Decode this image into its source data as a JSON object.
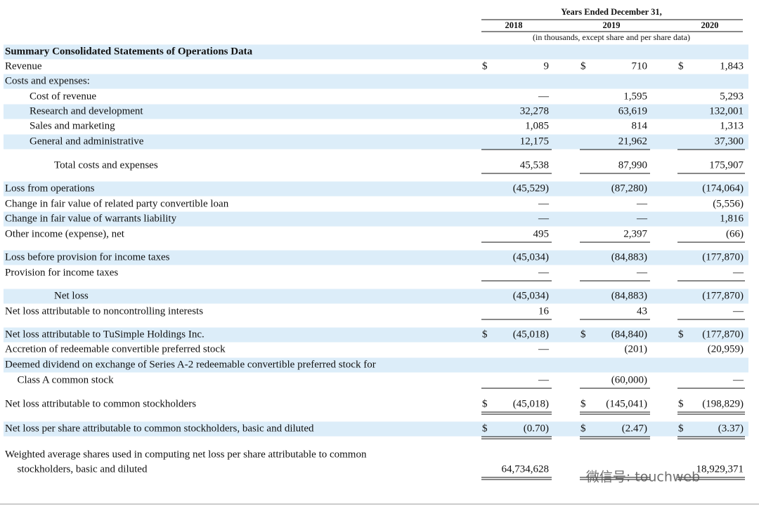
{
  "header": {
    "title": "Years Ended December 31,",
    "years": [
      "2018",
      "2019",
      "2020"
    ],
    "note": "(in thousands, except share and per share data)"
  },
  "table": {
    "rows": [
      {
        "label": "Summary Consolidated Statements of Operations Data",
        "bold": true,
        "shaded": true
      },
      {
        "label": "Revenue",
        "cells": [
          [
            "$",
            "9"
          ],
          [
            "$",
            "710"
          ],
          [
            "$",
            "1,843"
          ]
        ]
      },
      {
        "label": "Costs and expenses:",
        "shaded": true
      },
      {
        "label": "Cost of revenue",
        "indent": 1,
        "cells": [
          [
            "—"
          ],
          [
            "1,595"
          ],
          [
            "5,293"
          ]
        ]
      },
      {
        "label": "Research and development",
        "indent": 1,
        "shaded": true,
        "cells": [
          [
            "32,278"
          ],
          [
            "63,619"
          ],
          [
            "132,001"
          ]
        ]
      },
      {
        "label": "Sales and marketing",
        "indent": 1,
        "cells": [
          [
            "1,085"
          ],
          [
            "814"
          ],
          [
            "1,313"
          ]
        ]
      },
      {
        "label": "General and administrative",
        "indent": 1,
        "shaded": true,
        "rule": "single",
        "cells": [
          [
            "12,175"
          ],
          [
            "21,962"
          ],
          [
            "37,300"
          ]
        ]
      },
      {
        "label": "Total costs and expenses",
        "indent": 2,
        "rule": "single",
        "cells": [
          [
            "45,538"
          ],
          [
            "87,990"
          ],
          [
            "175,907"
          ]
        ]
      },
      {
        "label": "Loss from operations",
        "shaded": true,
        "cells": [
          [
            "(45,529)"
          ],
          [
            "(87,280)"
          ],
          [
            "(174,064)"
          ]
        ]
      },
      {
        "label": "Change in fair value of related party convertible loan",
        "cells": [
          [
            "—"
          ],
          [
            "—"
          ],
          [
            "(5,556)"
          ]
        ]
      },
      {
        "label": "Change in fair value of warrants liability",
        "shaded": true,
        "cells": [
          [
            "—"
          ],
          [
            "—"
          ],
          [
            "1,816"
          ]
        ]
      },
      {
        "label": "Other income (expense), net",
        "rule": "single",
        "cells": [
          [
            "495"
          ],
          [
            "2,397"
          ],
          [
            "(66)"
          ]
        ]
      },
      {
        "label": "Loss before provision for income taxes",
        "shaded": true,
        "cells": [
          [
            "(45,034)"
          ],
          [
            "(84,883)"
          ],
          [
            "(177,870)"
          ]
        ]
      },
      {
        "label": "Provision for income taxes",
        "rule": "single",
        "cells": [
          [
            "—"
          ],
          [
            "—"
          ],
          [
            "—"
          ]
        ]
      },
      {
        "label": "Net loss",
        "indent": 2,
        "shaded": true,
        "cells": [
          [
            "(45,034)"
          ],
          [
            "(84,883)"
          ],
          [
            "(177,870)"
          ]
        ]
      },
      {
        "label": "Net loss attributable to noncontrolling interests",
        "rule": "single",
        "cells": [
          [
            "16"
          ],
          [
            "43"
          ],
          [
            "—"
          ]
        ]
      },
      {
        "label": "Net loss attributable to TuSimple Holdings Inc.",
        "shaded": true,
        "cells": [
          [
            "$",
            "(45,018)"
          ],
          [
            "$",
            "(84,840)"
          ],
          [
            "$",
            "(177,870)"
          ]
        ]
      },
      {
        "label": "Accretion of redeemable convertible preferred stock",
        "cells": [
          [
            "—"
          ],
          [
            "(201)"
          ],
          [
            "(20,959)"
          ]
        ]
      },
      {
        "label": "Deemed dividend on exchange of Series A-2 redeemable convertible preferred stock for",
        "shaded": true
      },
      {
        "label": "Class A common stock",
        "indent": 0.5,
        "rule": "single",
        "cells": [
          [
            "—"
          ],
          [
            "(60,000)"
          ],
          [
            "—"
          ]
        ]
      },
      {
        "label": "Net loss attributable to common stockholders",
        "rule": "double",
        "cells": [
          [
            "$",
            "(45,018)"
          ],
          [
            "$",
            "(145,041)"
          ],
          [
            "$",
            "(198,829)"
          ]
        ]
      },
      {
        "label": "Net loss per share attributable to common stockholders, basic and diluted",
        "shaded": true,
        "rule": "double",
        "cells": [
          [
            "$",
            "(0.70)"
          ],
          [
            "$",
            "(2.47)"
          ],
          [
            "$",
            "(3.37)"
          ]
        ]
      },
      {
        "label": "Weighted average shares used in computing net loss per share attributable to common"
      },
      {
        "label": "stockholders, basic and diluted",
        "indent": 0.5,
        "rule": "double",
        "cells": [
          [
            "64,734,628"
          ],
          [
            "18,929,371"
          ]
        ],
        "skip": 1
      }
    ]
  },
  "watermark": "微信号: touchweb"
}
